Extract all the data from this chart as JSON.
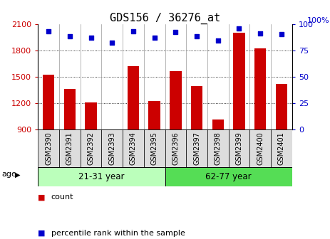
{
  "title": "GDS156 / 36276_at",
  "samples": [
    "GSM2390",
    "GSM2391",
    "GSM2392",
    "GSM2393",
    "GSM2394",
    "GSM2395",
    "GSM2396",
    "GSM2397",
    "GSM2398",
    "GSM2399",
    "GSM2400",
    "GSM2401"
  ],
  "counts": [
    1520,
    1360,
    1205,
    875,
    1620,
    1220,
    1565,
    1395,
    1010,
    2000,
    1820,
    1415
  ],
  "percentiles": [
    93,
    88,
    87,
    82,
    93,
    87,
    92,
    88,
    84,
    96,
    91,
    90
  ],
  "ylim_left": [
    900,
    2100
  ],
  "ylim_right": [
    0,
    100
  ],
  "yticks_left": [
    900,
    1200,
    1500,
    1800,
    2100
  ],
  "yticks_right": [
    0,
    25,
    50,
    75,
    100
  ],
  "bar_color": "#cc0000",
  "dot_color": "#0000cc",
  "group1_label": "21-31 year",
  "group2_label": "62-77 year",
  "group1_color": "#bbffbb",
  "group2_color": "#55dd55",
  "age_label": "age",
  "legend_count_label": "count",
  "legend_pct_label": "percentile rank within the sample",
  "background_color": "#ffffff",
  "title_fontsize": 11,
  "tick_fontsize": 8,
  "sample_label_fontsize": 7,
  "label_cell_color": "#dddddd",
  "right_axis_label": "100%"
}
